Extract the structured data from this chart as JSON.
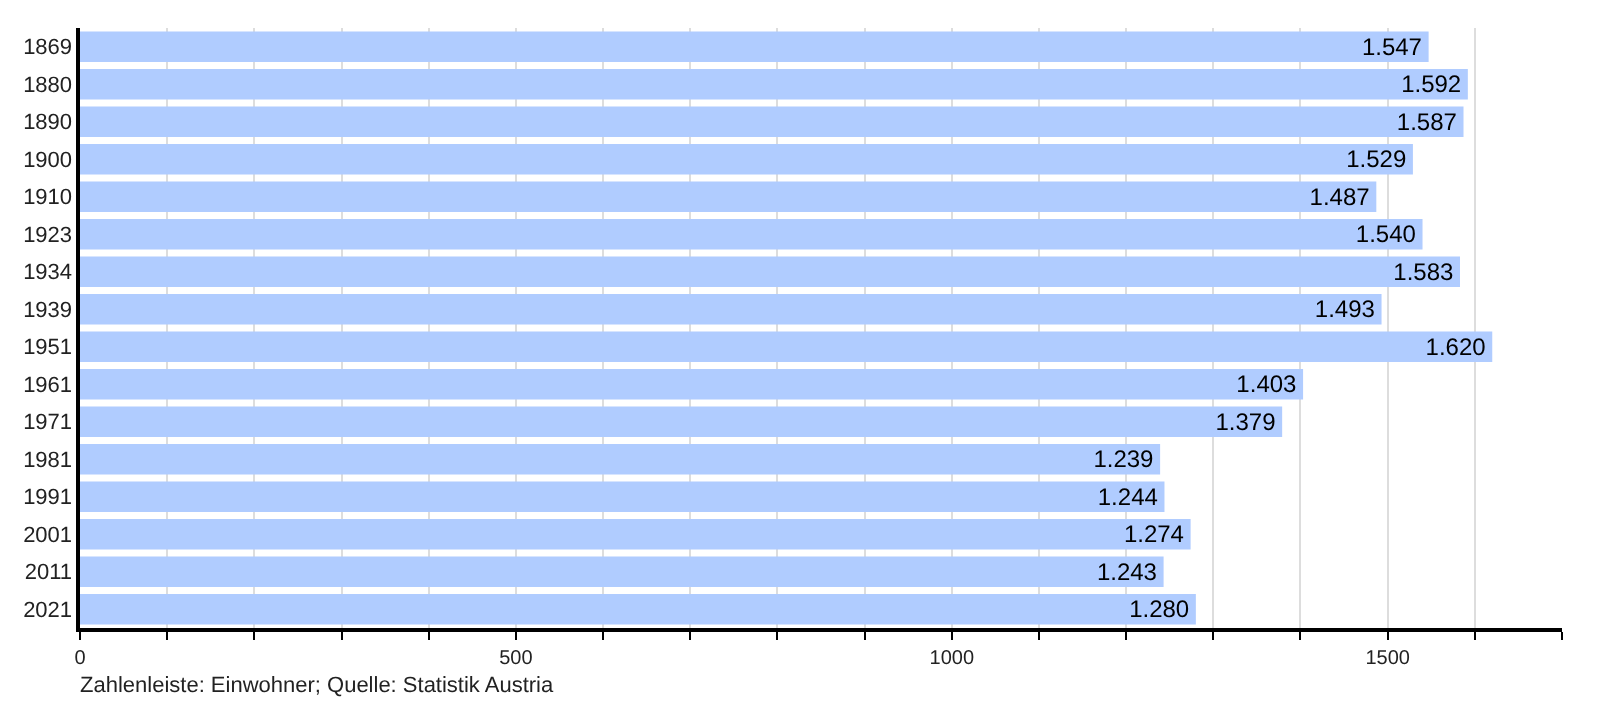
{
  "chart_data": {
    "type": "bar",
    "orientation": "horizontal",
    "categories": [
      "1869",
      "1880",
      "1890",
      "1900",
      "1910",
      "1923",
      "1934",
      "1939",
      "1951",
      "1961",
      "1971",
      "1981",
      "1991",
      "2001",
      "2011",
      "2021"
    ],
    "values": [
      1547,
      1592,
      1587,
      1529,
      1487,
      1540,
      1583,
      1493,
      1620,
      1403,
      1379,
      1239,
      1244,
      1274,
      1243,
      1280
    ],
    "value_labels": [
      "1.547",
      "1.592",
      "1.587",
      "1.529",
      "1.487",
      "1.540",
      "1.583",
      "1.493",
      "1.620",
      "1.403",
      "1.379",
      "1.239",
      "1.244",
      "1.274",
      "1.243",
      "1.280"
    ],
    "color": "#b0ccff",
    "xlim": [
      0,
      1700
    ],
    "xticks": [
      0,
      {
        "value": 100,
        "label": null
      },
      {
        "value": 200,
        "label": null
      },
      {
        "value": 300,
        "label": null
      },
      {
        "value": 400,
        "label": null
      },
      500,
      {
        "value": 600,
        "label": null
      },
      {
        "value": 700,
        "label": null
      },
      {
        "value": 800,
        "label": null
      },
      {
        "value": 900,
        "label": null
      },
      1000,
      {
        "value": 1100,
        "label": null
      },
      {
        "value": 1200,
        "label": null
      },
      {
        "value": 1300,
        "label": null
      },
      {
        "value": 1400,
        "label": null
      },
      1500,
      {
        "value": 1600,
        "label": null
      },
      {
        "value": 1700,
        "label": null
      }
    ],
    "grid": "x",
    "legend": false,
    "annotations": [
      "Zahlenleiste: Einwohner; Quelle: Statistik Austria"
    ]
  }
}
